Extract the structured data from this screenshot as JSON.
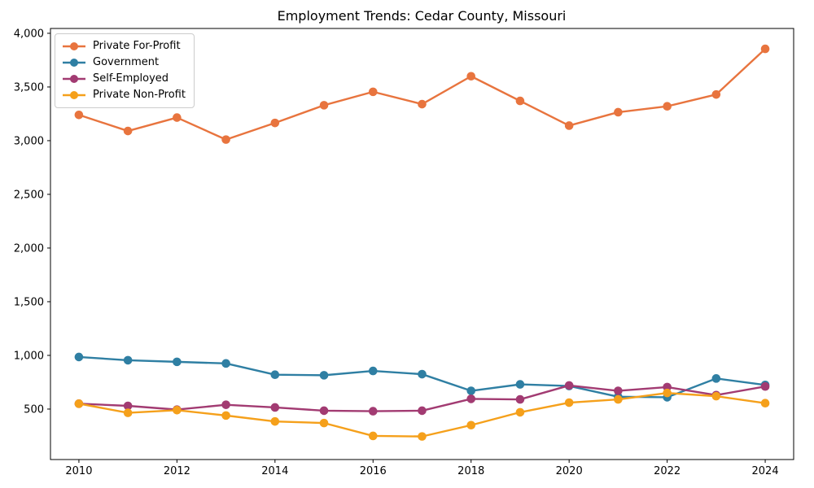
{
  "figure": {
    "title": "Employment Trends: Cedar County, Missouri"
  },
  "chart_data": {
    "type": "line",
    "title": "Employment Trends: Cedar County, Missouri",
    "x": [
      2010,
      2011,
      2012,
      2013,
      2014,
      2015,
      2016,
      2017,
      2018,
      2019,
      2020,
      2021,
      2022,
      2023,
      2024
    ],
    "series": [
      {
        "name": "Private For-Profit",
        "color": "#e8743e",
        "values": [
          3240,
          3090,
          3215,
          3010,
          3165,
          3330,
          3455,
          3340,
          3600,
          3370,
          3140,
          3265,
          3320,
          3430,
          3855
        ]
      },
      {
        "name": "Government",
        "color": "#2f7fa3",
        "values": [
          985,
          955,
          940,
          925,
          820,
          815,
          855,
          825,
          670,
          730,
          715,
          615,
          610,
          785,
          725
        ]
      },
      {
        "name": "Self-Employed",
        "color": "#a23b72",
        "values": [
          550,
          530,
          495,
          540,
          515,
          485,
          480,
          485,
          595,
          590,
          720,
          670,
          705,
          630,
          710
        ]
      },
      {
        "name": "Private Non-Profit",
        "color": "#f5a01b",
        "values": [
          550,
          465,
          490,
          440,
          385,
          370,
          250,
          245,
          350,
          470,
          560,
          590,
          650,
          620,
          555
        ]
      }
    ],
    "xlabel": "",
    "ylabel": "",
    "xticks": [
      2010,
      2012,
      2014,
      2016,
      2018,
      2020,
      2022,
      2024
    ],
    "xtick_labels": [
      "2010",
      "2012",
      "2014",
      "2016",
      "2018",
      "2020",
      "2022",
      "2024"
    ],
    "yticks": [
      500,
      1000,
      1500,
      2000,
      2500,
      3000,
      3500,
      4000
    ],
    "ytick_labels": [
      "500",
      "1,000",
      "1,500",
      "2,000",
      "2,500",
      "3,000",
      "3,500",
      "4,000"
    ],
    "xlim": [
      2009.42,
      2024.58
    ],
    "ylim": [
      30,
      4045
    ],
    "grid": false,
    "legend_position": "upper left",
    "marker": "o",
    "axis_color": "#000000"
  }
}
